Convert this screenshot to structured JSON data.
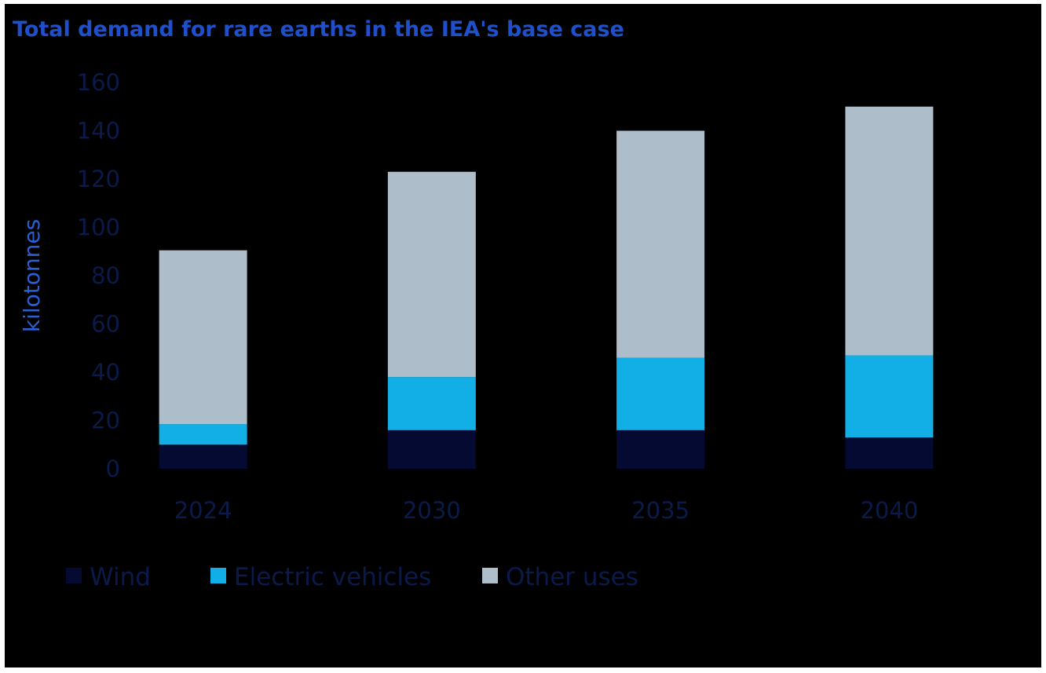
{
  "chart_data": {
    "type": "bar",
    "stacked": true,
    "title": "Total demand for rare earths in the IEA's base case",
    "ylabel": "kilotonnes",
    "xlabel": "",
    "categories": [
      "2024",
      "2030",
      "2035",
      "2040"
    ],
    "ylim": [
      0,
      160
    ],
    "yticks": [
      0,
      20,
      40,
      60,
      80,
      100,
      120,
      140,
      160
    ],
    "grid": false,
    "legend_position": "bottom-left",
    "series": [
      {
        "name": "Wind",
        "color": "#050a33",
        "values": [
          10,
          16,
          16,
          13
        ]
      },
      {
        "name": "Electric vehicles",
        "color": "#12aee6",
        "values": [
          8.5,
          22,
          30,
          34
        ]
      },
      {
        "name": "Other uses",
        "color": "#adbdca",
        "values": [
          72,
          85,
          94,
          103
        ]
      }
    ]
  }
}
